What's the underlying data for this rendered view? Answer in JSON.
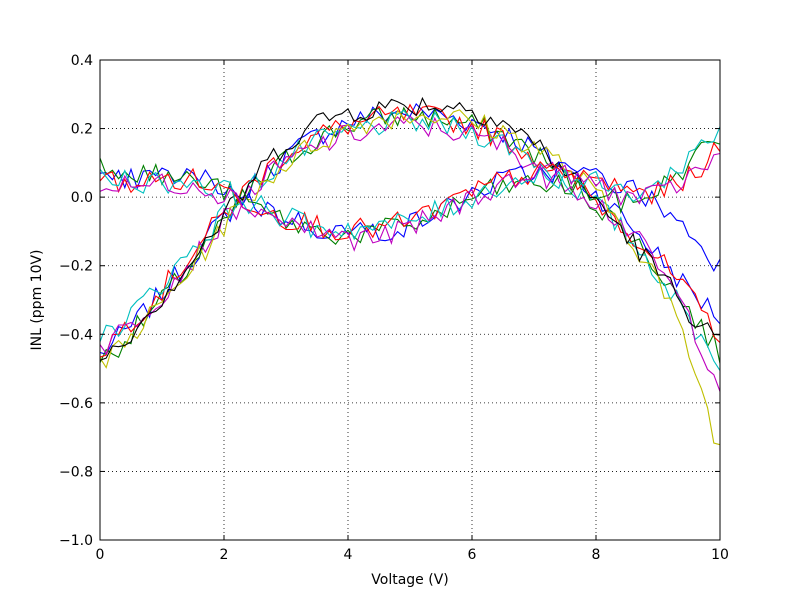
{
  "chart_data": {
    "type": "line",
    "title": "",
    "xlabel": "Voltage (V)",
    "ylabel": "INL (ppm 10V)",
    "xlim": [
      0,
      10
    ],
    "ylim": [
      -1.0,
      0.4
    ],
    "xticks": [
      0,
      2,
      4,
      6,
      8,
      10
    ],
    "xtick_labels": [
      "0",
      "2",
      "4",
      "6",
      "8",
      "10"
    ],
    "yticks": [
      -1.0,
      -0.8,
      -0.6,
      -0.4,
      -0.2,
      0.0,
      0.2,
      0.4
    ],
    "ytick_labels": [
      "−1.0",
      "−0.8",
      "−0.6",
      "−0.4",
      "−0.2",
      "0.0",
      "0.2",
      "0.4"
    ],
    "grid": true,
    "legend": "none",
    "colors": [
      "#0000ff",
      "#008000",
      "#ff0000",
      "#00bfbf",
      "#bf00bf",
      "#bfbf00",
      "#000000"
    ],
    "series": [
      {
        "color": "#0000ff",
        "x": [
          0,
          0.5,
          1,
          1.5,
          2,
          2.5,
          3,
          3.5,
          4,
          4.5,
          5,
          5.5,
          6,
          6.5,
          7,
          7.5,
          8,
          8.5,
          9,
          9.5,
          10
        ],
        "y": [
          -0.46,
          -0.38,
          -0.28,
          -0.17,
          -0.06,
          0.04,
          0.12,
          0.18,
          0.22,
          0.24,
          0.25,
          0.24,
          0.22,
          0.19,
          0.14,
          0.08,
          0.01,
          -0.07,
          -0.17,
          -0.27,
          -0.35
        ]
      },
      {
        "color": "#008000",
        "x": [
          0,
          0.5,
          1,
          1.5,
          2,
          2.5,
          3,
          3.5,
          4,
          4.5,
          5,
          5.5,
          6,
          6.5,
          7,
          7.5,
          8,
          8.5,
          9,
          9.5,
          10
        ],
        "y": [
          -0.48,
          -0.4,
          -0.3,
          -0.19,
          -0.08,
          0.03,
          0.11,
          0.17,
          0.21,
          0.23,
          0.24,
          0.23,
          0.21,
          0.18,
          0.13,
          0.06,
          -0.02,
          -0.1,
          -0.21,
          -0.33,
          -0.46
        ]
      },
      {
        "color": "#ff0000",
        "x": [
          0,
          0.5,
          1,
          1.5,
          2,
          2.5,
          3,
          3.5,
          4,
          4.5,
          5,
          5.5,
          6,
          6.5,
          7,
          7.5,
          8,
          8.5,
          9,
          9.5,
          10
        ],
        "y": [
          -0.45,
          -0.36,
          -0.27,
          -0.16,
          -0.05,
          0.05,
          0.13,
          0.18,
          0.21,
          0.23,
          0.24,
          0.23,
          0.21,
          0.17,
          0.12,
          0.06,
          -0.01,
          -0.09,
          -0.18,
          -0.29,
          -0.4
        ]
      },
      {
        "color": "#00bfbf",
        "x": [
          0,
          0.5,
          1,
          1.5,
          2,
          2.5,
          3,
          3.5,
          4,
          4.5,
          5,
          5.5,
          6,
          6.5,
          7,
          7.5,
          8,
          8.5,
          9,
          9.5,
          10
        ],
        "y": [
          -0.42,
          -0.34,
          -0.25,
          -0.15,
          -0.05,
          0.04,
          0.11,
          0.16,
          0.19,
          0.21,
          0.22,
          0.21,
          0.19,
          0.16,
          0.11,
          0.05,
          -0.02,
          -0.11,
          -0.22,
          -0.36,
          -0.48
        ]
      },
      {
        "color": "#bf00bf",
        "x": [
          0,
          0.5,
          1,
          1.5,
          2,
          2.5,
          3,
          3.5,
          4,
          4.5,
          5,
          5.5,
          6,
          6.5,
          7,
          7.5,
          8,
          8.5,
          9,
          9.5,
          10
        ],
        "y": [
          -0.44,
          -0.37,
          -0.28,
          -0.18,
          -0.07,
          0.03,
          0.1,
          0.15,
          0.18,
          0.2,
          0.21,
          0.2,
          0.18,
          0.15,
          0.1,
          0.05,
          -0.01,
          -0.09,
          -0.2,
          -0.35,
          -0.55
        ]
      },
      {
        "color": "#bfbf00",
        "x": [
          0,
          0.5,
          1,
          1.5,
          2,
          2.5,
          3,
          3.5,
          4,
          4.5,
          5,
          5.5,
          6,
          6.5,
          7,
          7.5,
          8,
          8.5,
          9,
          9.5,
          10
        ],
        "y": [
          -0.5,
          -0.41,
          -0.31,
          -0.2,
          -0.08,
          0.02,
          0.1,
          0.16,
          0.2,
          0.23,
          0.24,
          0.24,
          0.22,
          0.19,
          0.15,
          0.09,
          0.01,
          -0.1,
          -0.24,
          -0.45,
          -0.74
        ]
      },
      {
        "color": "#000000",
        "x": [
          0,
          0.5,
          1,
          1.5,
          2,
          2.5,
          3,
          3.5,
          4,
          4.5,
          5,
          5.5,
          6,
          6.5,
          7,
          7.5,
          8,
          8.5,
          9,
          9.5,
          10
        ],
        "y": [
          -0.47,
          -0.39,
          -0.29,
          -0.18,
          -0.06,
          0.06,
          0.16,
          0.22,
          0.25,
          0.26,
          0.27,
          0.27,
          0.26,
          0.22,
          0.16,
          0.08,
          -0.01,
          -0.11,
          -0.22,
          -0.33,
          -0.43
        ]
      },
      {
        "color": "#0000ff",
        "x": [
          0,
          0.5,
          1,
          1.5,
          2,
          2.5,
          3,
          3.5,
          4,
          4.5,
          5,
          5.5,
          6,
          6.5,
          7,
          7.5,
          8,
          8.5,
          9,
          9.5,
          10
        ],
        "y": [
          0.04,
          0.05,
          0.06,
          0.06,
          0.03,
          -0.02,
          -0.06,
          -0.09,
          -0.1,
          -0.1,
          -0.08,
          -0.04,
          0.01,
          0.05,
          0.07,
          0.08,
          0.06,
          0.03,
          -0.02,
          -0.1,
          -0.2
        ]
      },
      {
        "color": "#008000",
        "x": [
          0,
          0.5,
          1,
          1.5,
          2,
          2.5,
          3,
          3.5,
          4,
          4.5,
          5,
          5.5,
          6,
          6.5,
          7,
          7.5,
          8,
          8.5,
          9,
          9.5,
          10
        ],
        "y": [
          0.1,
          0.08,
          0.06,
          0.05,
          0.02,
          -0.03,
          -0.07,
          -0.1,
          -0.11,
          -0.1,
          -0.08,
          -0.05,
          0.0,
          0.03,
          0.04,
          0.03,
          0.01,
          -0.02,
          0.02,
          0.1,
          0.18
        ]
      },
      {
        "color": "#ff0000",
        "x": [
          0,
          0.5,
          1,
          1.5,
          2,
          2.5,
          3,
          3.5,
          4,
          4.5,
          5,
          5.5,
          6,
          6.5,
          7,
          7.5,
          8,
          8.5,
          9,
          9.5,
          10
        ],
        "y": [
          0.05,
          0.04,
          0.05,
          0.05,
          0.02,
          -0.02,
          -0.06,
          -0.08,
          -0.1,
          -0.09,
          -0.07,
          -0.03,
          0.01,
          0.05,
          0.07,
          0.07,
          0.05,
          0.02,
          0.01,
          0.06,
          0.14
        ]
      },
      {
        "color": "#00bfbf",
        "x": [
          0,
          0.5,
          1,
          1.5,
          2,
          2.5,
          3,
          3.5,
          4,
          4.5,
          5,
          5.5,
          6,
          6.5,
          7,
          7.5,
          8,
          8.5,
          9,
          9.5,
          10
        ],
        "y": [
          0.06,
          0.05,
          0.04,
          0.05,
          0.02,
          -0.02,
          -0.06,
          -0.09,
          -0.09,
          -0.09,
          -0.07,
          -0.04,
          0.0,
          0.04,
          0.06,
          0.06,
          0.04,
          0.01,
          0.03,
          0.12,
          0.2
        ]
      },
      {
        "color": "#bf00bf",
        "x": [
          0,
          0.5,
          1,
          1.5,
          2,
          2.5,
          3,
          3.5,
          4,
          4.5,
          5,
          5.5,
          6,
          6.5,
          7,
          7.5,
          8,
          8.5,
          9,
          9.5,
          10
        ],
        "y": [
          0.03,
          0.03,
          0.04,
          0.04,
          0.01,
          -0.03,
          -0.07,
          -0.1,
          -0.12,
          -0.12,
          -0.09,
          -0.05,
          0.0,
          0.04,
          0.06,
          0.06,
          0.04,
          0.0,
          0.0,
          0.06,
          0.12
        ]
      }
    ]
  }
}
